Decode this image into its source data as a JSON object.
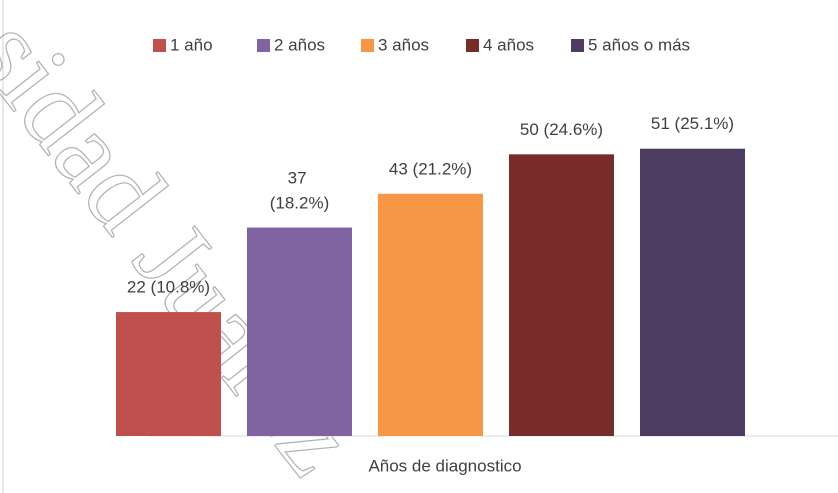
{
  "chart_data": {
    "type": "bar",
    "x_label": "Años de diagnostico",
    "watermark": "sidad Juárez",
    "ylim": [
      0,
      60
    ],
    "series": [
      {
        "name": "1 año",
        "color": "#c0504d",
        "values": [
          22
        ],
        "value_labels": [
          "22 (10.8%)"
        ]
      },
      {
        "name": "2 años",
        "color": "#8064a2",
        "values": [
          37
        ],
        "value_labels": [
          "37 (18.2%)"
        ]
      },
      {
        "name": "3 años",
        "color": "#f79646",
        "values": [
          43
        ],
        "value_labels": [
          "43 (21.2%)"
        ]
      },
      {
        "name": "4 años",
        "color": "#772c2a",
        "values": [
          50
        ],
        "value_labels": [
          "50 (24.6%)"
        ]
      },
      {
        "name": "5 años o más",
        "color": "#4d3b62",
        "values": [
          51
        ],
        "value_labels": [
          "51 (25.1%)"
        ]
      }
    ]
  }
}
